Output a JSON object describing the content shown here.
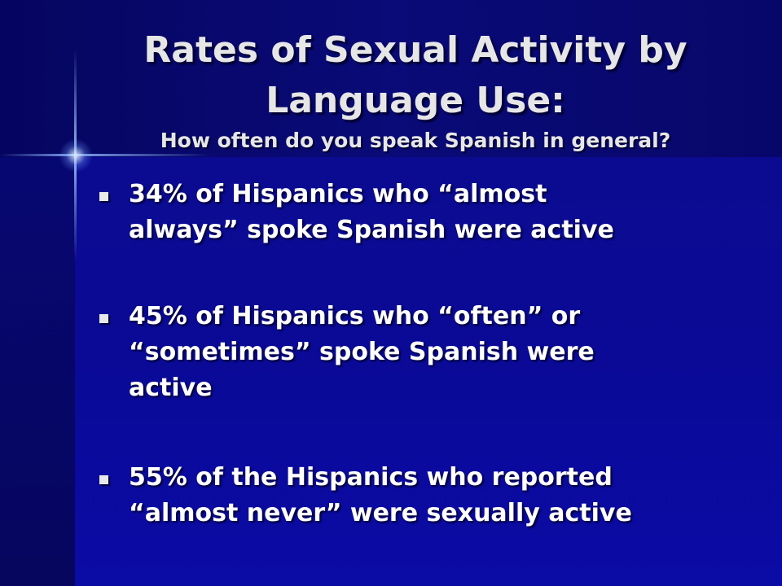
{
  "title": [
    "Rates of Sexual Activity by",
    "Language Use:"
  ],
  "subtitle": "How often do you speak Spanish in general?",
  "bullets": [
    [
      "34% of Hispanics who “almost",
      "always” spoke Spanish were active"
    ],
    [
      "45% of Hispanics who “often” or",
      "“sometimes” spoke Spanish were",
      "active"
    ],
    [
      "55% of the Hispanics who reported",
      "“almost never” were sexually active"
    ]
  ]
}
